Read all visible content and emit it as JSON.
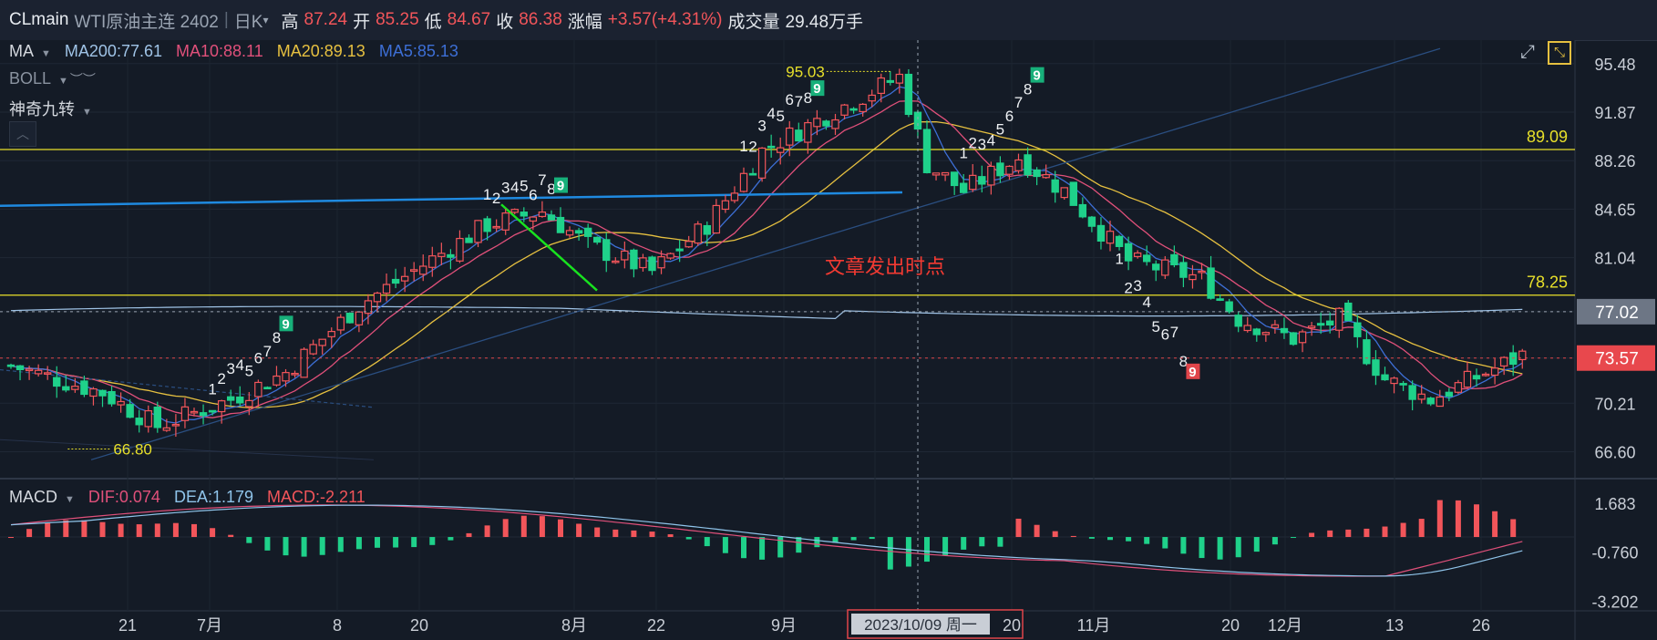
{
  "header": {
    "symbol": "CLmain",
    "name": "WTI原油主连 2402",
    "separator": "|",
    "period": "日K",
    "period_caret": "▾",
    "high_label": "高",
    "high": "87.24",
    "open_label": "开",
    "open": "85.25",
    "low_label": "低",
    "low": "84.67",
    "close_label": "收",
    "close": "86.38",
    "change_label": "涨幅",
    "change": "+3.57(+4.31%)",
    "volume_label": "成交量",
    "volume": "29.48万手"
  },
  "indicators": {
    "ma_label": "MA",
    "ma200": "MA200:77.61",
    "ma10": "MA10:88.11",
    "ma20": "MA20:89.13",
    "ma5": "MA5:85.13",
    "boll_label": "BOLL",
    "nine_label": "神奇九转",
    "macd_label": "MACD",
    "dif": "DIF:0.074",
    "dea": "DEA:1.179",
    "macd": "MACD:-2.211"
  },
  "icons": [
    "expand-icon",
    "fullscreen-icon",
    "collapse-icon",
    "eye-off-icon"
  ],
  "colors": {
    "up": "#f2555a",
    "down": "#1fd18a",
    "ma5": "#3d6fd6",
    "ma10": "#e0507a",
    "ma20": "#e6c040",
    "ma200": "#9fc3e6",
    "level": "#e8e02a",
    "trend": "#1f8ae0"
  },
  "chart_data": [
    {
      "type": "candlestick",
      "price_range": [
        64.8,
        97.5
      ],
      "y_ticks": [
        "95.48",
        "91.87",
        "88.26",
        "84.65",
        "81.04",
        "77.02",
        "73.57",
        "70.21",
        "66.60"
      ],
      "x_ticks": [
        "21",
        "7月",
        "8",
        "20",
        "8月",
        "22",
        "9月",
        "20",
        "20",
        "11月",
        "20",
        "12月",
        "13",
        "26"
      ],
      "current_price_tag": "73.57",
      "crosshair_price_tag": "77.02",
      "levels": [
        {
          "label": "89.09",
          "value": 89.09
        },
        {
          "label": "78.25",
          "value": 78.25
        }
      ],
      "annotations": [
        {
          "text": "95.03",
          "note": "high"
        },
        {
          "text": "66.80",
          "note": "low"
        },
        {
          "text": "文章发出时点",
          "note": "marker"
        }
      ],
      "nine_counts": [
        "1",
        "2",
        "3",
        "4",
        "5",
        "6",
        "7",
        "8",
        "9",
        "1",
        "2",
        "3",
        "4",
        "5",
        "6",
        "7",
        "8",
        "9",
        "1",
        "2",
        "3",
        "4",
        "5",
        "6",
        "7",
        "8",
        "9",
        "1",
        "2",
        "3",
        "4",
        "5",
        "6",
        "7",
        "8",
        "9",
        "1",
        "2",
        "3",
        "4",
        "5",
        "6",
        "7",
        "8",
        "9"
      ],
      "crosshair_date": "2023/10/09 周一"
    },
    {
      "type": "macd",
      "y_ticks": [
        "1.683",
        "-0.760",
        "-3.202"
      ],
      "range": [
        -3.6,
        2.6
      ]
    }
  ]
}
